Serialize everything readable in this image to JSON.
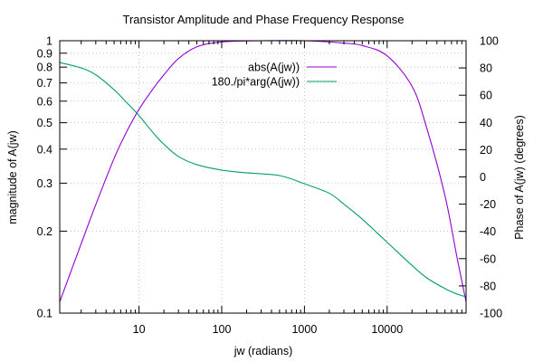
{
  "chart_data": {
    "type": "line",
    "title": "Transistor Amplitude and Phase Frequency Response",
    "xlabel": "jw (radians)",
    "ylabel": "magnitude of A(jw)",
    "y2label": "Phase of A(jw) (degrees)",
    "x_scale": "log",
    "y_scale": "log",
    "xlim": [
      1.1,
      90000
    ],
    "ylim": [
      0.1,
      1
    ],
    "y2lim": [
      -100,
      100
    ],
    "x_ticks": [
      "10",
      "100",
      "1000",
      "10000"
    ],
    "y_ticks": [
      "0.1",
      "0.2",
      "0.3",
      "0.4",
      "0.5",
      "0.6",
      "0.7",
      "0.8",
      "0.9",
      "1"
    ],
    "y2_ticks": [
      "-100",
      "-80",
      "-60",
      "-40",
      "-20",
      "0",
      "20",
      "40",
      "60",
      "80",
      "100"
    ],
    "grid": true,
    "legend_position": "top-right",
    "series": [
      {
        "name": "abs(A(jw))",
        "axis": "left",
        "color": "#9400d3",
        "x": [
          1.1,
          2,
          3,
          5,
          7,
          10,
          15,
          20,
          30,
          50,
          100,
          300,
          1000,
          3000,
          5000,
          10000,
          20000,
          30000,
          50000,
          70000,
          90000
        ],
        "y": [
          0.11,
          0.18,
          0.25,
          0.37,
          0.46,
          0.56,
          0.67,
          0.75,
          0.86,
          0.95,
          0.99,
          1.0,
          1.0,
          0.98,
          0.96,
          0.88,
          0.68,
          0.48,
          0.27,
          0.16,
          0.11
        ]
      },
      {
        "name": "180./pi*arg(A(jw))",
        "axis": "right",
        "color": "#009e73",
        "x": [
          1.1,
          2,
          3,
          5,
          7,
          10,
          15,
          20,
          30,
          50,
          100,
          200,
          500,
          1000,
          2000,
          3000,
          5000,
          10000,
          20000,
          30000,
          50000,
          70000,
          90000
        ],
        "y": [
          84,
          80,
          75,
          64,
          55,
          45,
          32,
          24,
          15,
          9,
          5,
          3,
          1,
          -5,
          -12,
          -20,
          -31,
          -48,
          -65,
          -74,
          -82,
          -86,
          -88
        ]
      }
    ]
  }
}
